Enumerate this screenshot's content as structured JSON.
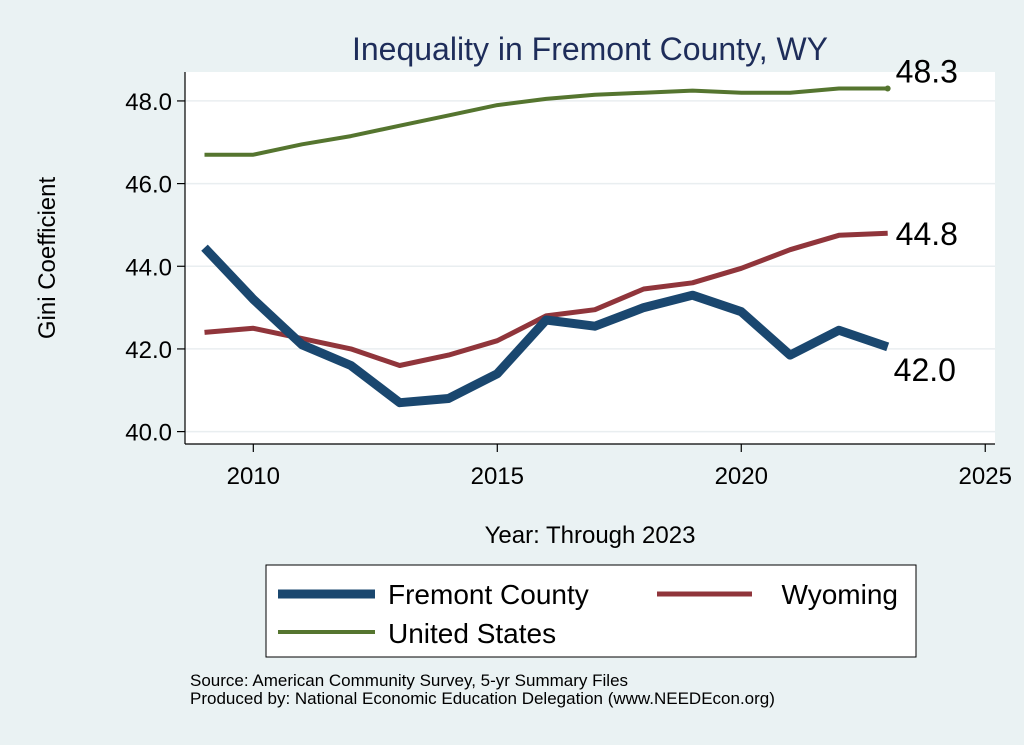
{
  "chart_data": {
    "type": "line",
    "title": "Inequality in Fremont County, WY",
    "xlabel": "Year: Through 2023",
    "ylabel": "Gini Coefficient",
    "xlim": [
      2008.6,
      2025.2
    ],
    "ylim": [
      39.7,
      48.7
    ],
    "xticks": [
      2010,
      2015,
      2020,
      2025
    ],
    "yticks": [
      40.0,
      42.0,
      44.0,
      46.0,
      48.0
    ],
    "ytick_labels": [
      "40.0",
      "42.0",
      "44.0",
      "46.0",
      "48.0"
    ],
    "grid": true,
    "legend_position": "bottom",
    "series": [
      {
        "name": "Fremont County",
        "color": "#1a476f",
        "end_label": "42.0",
        "x": [
          2009,
          2010,
          2011,
          2012,
          2013,
          2014,
          2015,
          2016,
          2017,
          2018,
          2019,
          2020,
          2021,
          2022,
          2023
        ],
        "values": [
          44.45,
          43.2,
          42.1,
          41.6,
          40.7,
          40.8,
          41.4,
          42.7,
          42.55,
          43.0,
          43.3,
          42.9,
          41.85,
          42.45,
          42.05
        ]
      },
      {
        "name": "Wyoming",
        "color": "#90353b",
        "end_label": "44.8",
        "x": [
          2009,
          2010,
          2011,
          2012,
          2013,
          2014,
          2015,
          2016,
          2017,
          2018,
          2019,
          2020,
          2021,
          2022,
          2023
        ],
        "values": [
          42.4,
          42.5,
          42.25,
          42.0,
          41.6,
          41.85,
          42.2,
          42.8,
          42.95,
          43.45,
          43.6,
          43.95,
          44.4,
          44.75,
          44.8
        ]
      },
      {
        "name": "United States",
        "color": "#55752f",
        "end_label": "48.3",
        "x": [
          2009,
          2010,
          2011,
          2012,
          2013,
          2014,
          2015,
          2016,
          2017,
          2018,
          2019,
          2020,
          2021,
          2022,
          2023
        ],
        "values": [
          46.7,
          46.7,
          46.95,
          47.15,
          47.4,
          47.65,
          47.9,
          48.05,
          48.15,
          48.2,
          48.25,
          48.2,
          48.2,
          48.3,
          48.3
        ]
      }
    ]
  },
  "footer": {
    "source": "Source: American Community Survey, 5-yr Summary Files",
    "produced_by": "Produced by: National Economic Education Delegation (www.NEEDEcon.org)"
  }
}
